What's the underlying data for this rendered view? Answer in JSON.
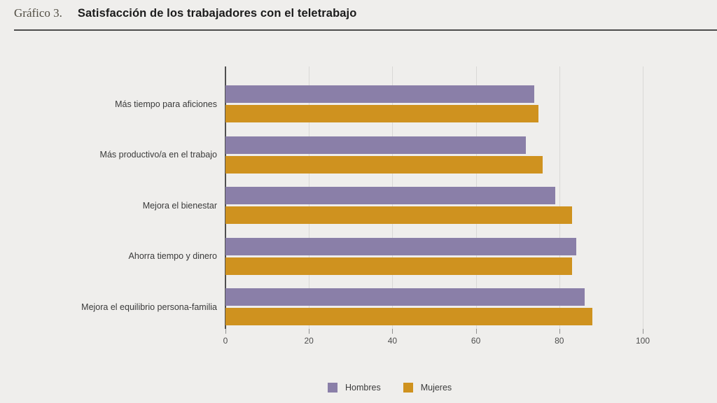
{
  "header": {
    "kicker": "Gráfico 3.",
    "title": "Satisfacción de los trabajadores con el teletrabajo"
  },
  "chart_data": {
    "type": "bar",
    "orientation": "horizontal",
    "title": "Satisfacción de los trabajadores con el teletrabajo",
    "categories": [
      "Más tiempo para aficiones",
      "Más productivo/a en el trabajo",
      "Mejora el bienestar",
      "Ahorra tiempo y dinero",
      "Mejora el equilibrio persona-familia"
    ],
    "series": [
      {
        "name": "Hombres",
        "color": "#8a7fa8",
        "values": [
          74,
          72,
          79,
          84,
          86
        ]
      },
      {
        "name": "Mujeres",
        "color": "#cf921f",
        "values": [
          75,
          76,
          83,
          83,
          88
        ]
      }
    ],
    "xlim": [
      0,
      100
    ],
    "x_ticks": [
      0,
      20,
      40,
      60,
      80,
      100
    ],
    "grid": true,
    "legend_position": "bottom"
  },
  "colors": {
    "background": "#efeeec",
    "gridline": "#d9d8d6",
    "axis_line": "#4f4f4f",
    "rule": "#4c4c4c"
  }
}
